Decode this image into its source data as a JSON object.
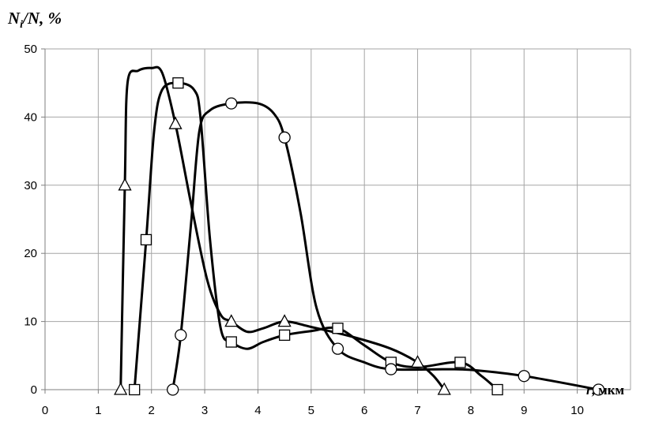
{
  "chart_data": {
    "type": "line",
    "ylabel": "Ni/N, %",
    "ylabel_parts": {
      "n1": "N",
      "sub": "i",
      "rest": "/N, %"
    },
    "xlabel": "r, мкм",
    "xlabel_parts": {
      "var": "r",
      "rest": ", мкм"
    },
    "xlim": [
      0,
      11
    ],
    "ylim": [
      0,
      50
    ],
    "xticks": [
      0,
      1,
      2,
      3,
      4,
      5,
      6,
      7,
      8,
      9,
      10
    ],
    "yticks": [
      0,
      10,
      20,
      30,
      40,
      50
    ],
    "grid": true,
    "series": [
      {
        "marker": "triangle",
        "points": [
          [
            1.42,
            0
          ],
          [
            1.5,
            30
          ],
          [
            2.45,
            39
          ],
          [
            3.5,
            10
          ],
          [
            4.5,
            10
          ],
          [
            7.0,
            4
          ],
          [
            7.5,
            0
          ]
        ],
        "curve": [
          [
            1.42,
            0
          ],
          [
            1.5,
            30
          ],
          [
            1.55,
            45
          ],
          [
            1.75,
            46.8
          ],
          [
            2.0,
            47.2
          ],
          [
            2.2,
            46.5
          ],
          [
            2.45,
            39
          ],
          [
            2.75,
            27
          ],
          [
            3.05,
            16
          ],
          [
            3.3,
            11
          ],
          [
            3.5,
            10
          ],
          [
            3.8,
            8.5
          ],
          [
            4.1,
            9
          ],
          [
            4.5,
            10
          ],
          [
            5.0,
            9.2
          ],
          [
            5.8,
            7.7
          ],
          [
            6.5,
            6
          ],
          [
            7.0,
            4
          ],
          [
            7.3,
            2
          ],
          [
            7.5,
            0
          ]
        ]
      },
      {
        "marker": "square",
        "points": [
          [
            1.68,
            0
          ],
          [
            1.9,
            22
          ],
          [
            2.5,
            45
          ],
          [
            3.5,
            7
          ],
          [
            4.5,
            8
          ],
          [
            5.5,
            9
          ],
          [
            6.5,
            4
          ],
          [
            7.8,
            4
          ],
          [
            8.5,
            0
          ]
        ],
        "curve": [
          [
            1.68,
            0
          ],
          [
            1.9,
            22
          ],
          [
            2.05,
            38
          ],
          [
            2.2,
            44
          ],
          [
            2.5,
            45
          ],
          [
            2.8,
            44
          ],
          [
            2.92,
            40
          ],
          [
            3.1,
            22
          ],
          [
            3.3,
            9
          ],
          [
            3.5,
            7
          ],
          [
            3.8,
            6
          ],
          [
            4.1,
            7
          ],
          [
            4.5,
            8
          ],
          [
            5.0,
            8.6
          ],
          [
            5.5,
            9
          ],
          [
            6.0,
            6.5
          ],
          [
            6.5,
            4
          ],
          [
            7.0,
            3.3
          ],
          [
            7.8,
            4
          ],
          [
            8.2,
            2
          ],
          [
            8.5,
            0
          ]
        ]
      },
      {
        "marker": "circle",
        "points": [
          [
            2.4,
            0
          ],
          [
            2.55,
            8
          ],
          [
            3.5,
            42
          ],
          [
            4.5,
            37
          ],
          [
            5.5,
            6
          ],
          [
            6.5,
            3
          ],
          [
            9.0,
            2
          ],
          [
            10.4,
            0
          ]
        ],
        "curve": [
          [
            2.4,
            0
          ],
          [
            2.55,
            8
          ],
          [
            2.75,
            25
          ],
          [
            2.9,
            38
          ],
          [
            3.1,
            41
          ],
          [
            3.5,
            42
          ],
          [
            4.0,
            42
          ],
          [
            4.3,
            40.5
          ],
          [
            4.5,
            37
          ],
          [
            4.8,
            26
          ],
          [
            5.1,
            12
          ],
          [
            5.5,
            6
          ],
          [
            6.0,
            4
          ],
          [
            6.5,
            3
          ],
          [
            7.5,
            3
          ],
          [
            8.0,
            2.9
          ],
          [
            9.0,
            2
          ],
          [
            10.4,
            0
          ]
        ]
      }
    ]
  }
}
